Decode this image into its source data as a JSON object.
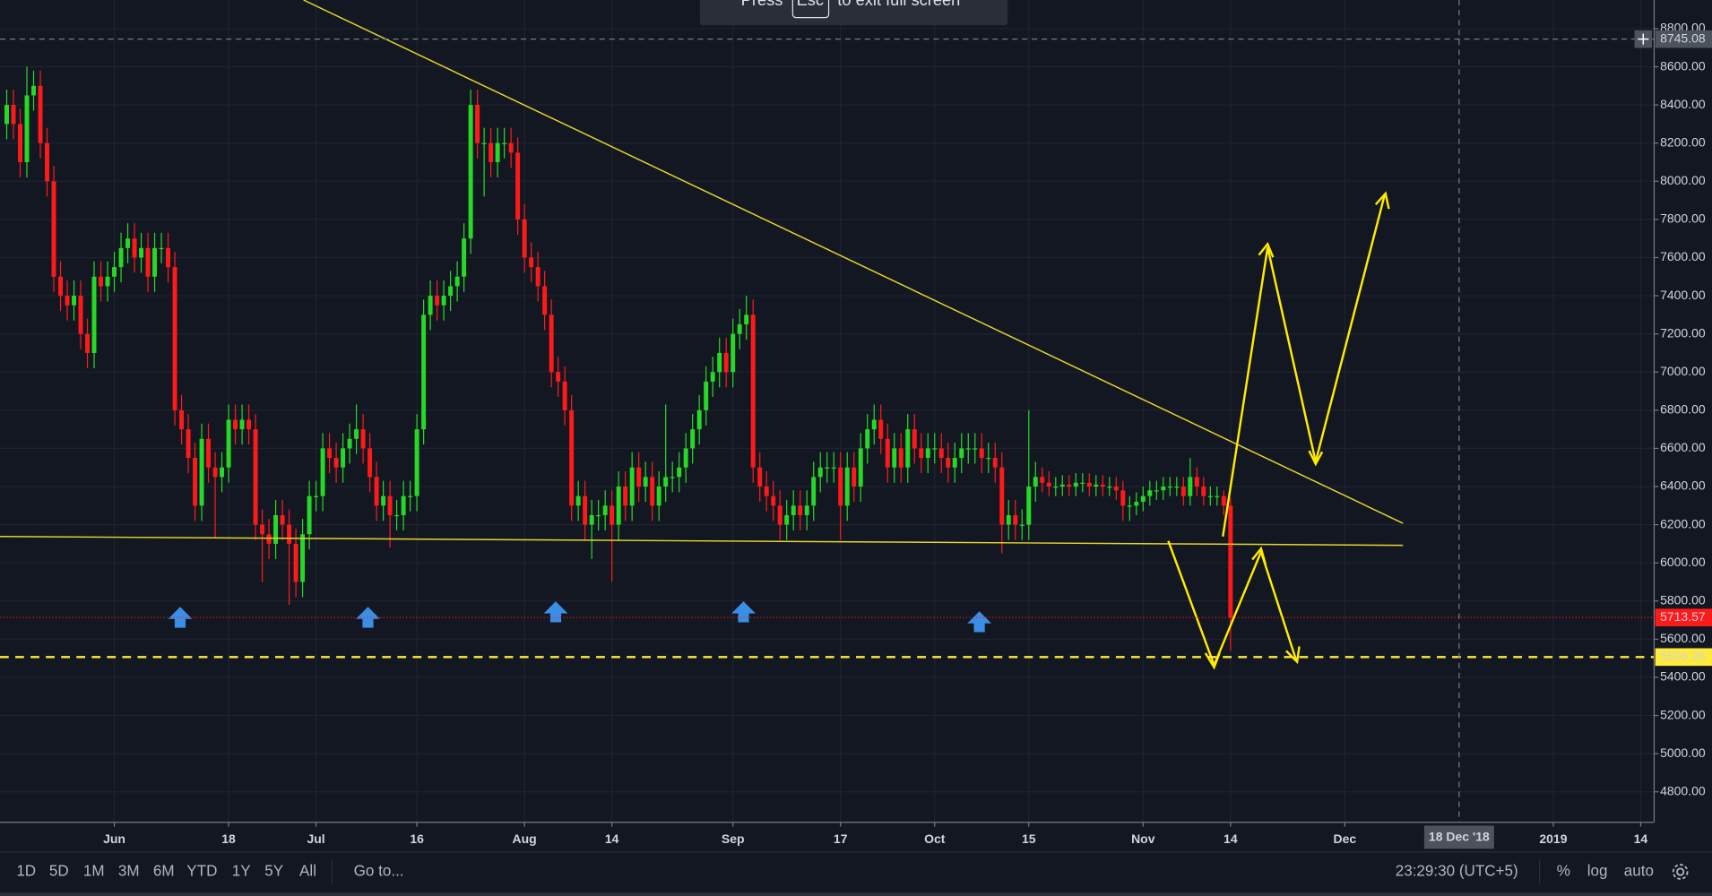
{
  "chart_data": {
    "type": "candlestick",
    "x": [
      "2018-05-16",
      "2018-05-17",
      "2018-05-18",
      "2018-05-19",
      "2018-05-20",
      "2018-05-21",
      "2018-05-22",
      "2018-05-23",
      "2018-05-24",
      "2018-05-25",
      "2018-05-26",
      "2018-05-27",
      "2018-05-28",
      "2018-05-29",
      "2018-05-30",
      "2018-05-31",
      "2018-06-01",
      "2018-06-02",
      "2018-06-03",
      "2018-06-04",
      "2018-06-05",
      "2018-06-06",
      "2018-06-07",
      "2018-06-08",
      "2018-06-09",
      "2018-06-10",
      "2018-06-11",
      "2018-06-12",
      "2018-06-13",
      "2018-06-14",
      "2018-06-15",
      "2018-06-16",
      "2018-06-17",
      "2018-06-18",
      "2018-06-19",
      "2018-06-20",
      "2018-06-21",
      "2018-06-22",
      "2018-06-23",
      "2018-06-24",
      "2018-06-25",
      "2018-06-26",
      "2018-06-27",
      "2018-06-28",
      "2018-06-29",
      "2018-06-30",
      "2018-07-01",
      "2018-07-02",
      "2018-07-03",
      "2018-07-04",
      "2018-07-05",
      "2018-07-06",
      "2018-07-07",
      "2018-07-08",
      "2018-07-09",
      "2018-07-10",
      "2018-07-11",
      "2018-07-12",
      "2018-07-13",
      "2018-07-14",
      "2018-07-15",
      "2018-07-16",
      "2018-07-17",
      "2018-07-18",
      "2018-07-19",
      "2018-07-20",
      "2018-07-21",
      "2018-07-22",
      "2018-07-23",
      "2018-07-24",
      "2018-07-25",
      "2018-07-26",
      "2018-07-27",
      "2018-07-28",
      "2018-07-29",
      "2018-07-30",
      "2018-07-31",
      "2018-08-01",
      "2018-08-02",
      "2018-08-03",
      "2018-08-04",
      "2018-08-05",
      "2018-08-06",
      "2018-08-07",
      "2018-08-08",
      "2018-08-09",
      "2018-08-10",
      "2018-08-11",
      "2018-08-12",
      "2018-08-13",
      "2018-08-14",
      "2018-08-15",
      "2018-08-16",
      "2018-08-17",
      "2018-08-18",
      "2018-08-19",
      "2018-08-20",
      "2018-08-21",
      "2018-08-22",
      "2018-08-23",
      "2018-08-24",
      "2018-08-25",
      "2018-08-26",
      "2018-08-27",
      "2018-08-28",
      "2018-08-29",
      "2018-08-30",
      "2018-08-31",
      "2018-09-01",
      "2018-09-02",
      "2018-09-03",
      "2018-09-04",
      "2018-09-05",
      "2018-09-06",
      "2018-09-07",
      "2018-09-08",
      "2018-09-09",
      "2018-09-10",
      "2018-09-11",
      "2018-09-12",
      "2018-09-13",
      "2018-09-14",
      "2018-09-15",
      "2018-09-16",
      "2018-09-17",
      "2018-09-18",
      "2018-09-19",
      "2018-09-20",
      "2018-09-21",
      "2018-09-22",
      "2018-09-23",
      "2018-09-24",
      "2018-09-25",
      "2018-09-26",
      "2018-09-27",
      "2018-09-28",
      "2018-09-29",
      "2018-09-30",
      "2018-10-01",
      "2018-10-02",
      "2018-10-03",
      "2018-10-04",
      "2018-10-05",
      "2018-10-06",
      "2018-10-07",
      "2018-10-08",
      "2018-10-09",
      "2018-10-10",
      "2018-10-11",
      "2018-10-12",
      "2018-10-13",
      "2018-10-14",
      "2018-10-15",
      "2018-10-16",
      "2018-10-17",
      "2018-10-18",
      "2018-10-19",
      "2018-10-20",
      "2018-10-21",
      "2018-10-22",
      "2018-10-23",
      "2018-10-24",
      "2018-10-25",
      "2018-10-26",
      "2018-10-27",
      "2018-10-28",
      "2018-10-29",
      "2018-10-30",
      "2018-10-31",
      "2018-11-01",
      "2018-11-02",
      "2018-11-03",
      "2018-11-04",
      "2018-11-05",
      "2018-11-06",
      "2018-11-07",
      "2018-11-08",
      "2018-11-09",
      "2018-11-10",
      "2018-11-11",
      "2018-11-12",
      "2018-11-13",
      "2018-11-14"
    ],
    "open": [
      8300,
      8400,
      8300,
      8100,
      8450,
      8500,
      8200,
      8000,
      7500,
      7400,
      7350,
      7400,
      7200,
      7100,
      7500,
      7450,
      7500,
      7550,
      7650,
      7700,
      7600,
      7650,
      7500,
      7650,
      7650,
      7550,
      6800,
      6700,
      6550,
      6300,
      6650,
      6500,
      6450,
      6500,
      6750,
      6700,
      6750,
      6700,
      6200,
      6150,
      6100,
      6250,
      6200,
      6100,
      5900,
      6150,
      6350,
      6350,
      6600,
      6550,
      6500,
      6600,
      6650,
      6700,
      6600,
      6450,
      6300,
      6350,
      6250,
      6250,
      6350,
      6350,
      6700,
      7300,
      7400,
      7350,
      7400,
      7450,
      7500,
      7700,
      8400,
      8200,
      8200,
      8100,
      8200,
      8200,
      8150,
      7800,
      7600,
      7550,
      7450,
      7300,
      7000,
      6950,
      6800,
      6300,
      6350,
      6200,
      6250,
      6250,
      6300,
      6200,
      6400,
      6300,
      6500,
      6400,
      6450,
      6300,
      6400,
      6450,
      6450,
      6500,
      6600,
      6700,
      6800,
      6950,
      7000,
      7100,
      7000,
      7200,
      7250,
      7300,
      6500,
      6400,
      6350,
      6300,
      6200,
      6250,
      6300,
      6250,
      6300,
      6450,
      6500,
      6500,
      6500,
      6300,
      6500,
      6400,
      6600,
      6700,
      6750,
      6650,
      6500,
      6600,
      6500,
      6700,
      6600,
      6550,
      6600,
      6600,
      6550,
      6500,
      6550,
      6600,
      6600,
      6600,
      6550,
      6550,
      6500,
      6200,
      6250,
      6200,
      6200,
      6400,
      6450,
      6420,
      6400,
      6400,
      6410,
      6400,
      6420,
      6420,
      6400,
      6410,
      6400,
      6400,
      6380,
      6300,
      6300,
      6320,
      6350,
      6380,
      6380,
      6400,
      6400,
      6400,
      6350,
      6450,
      6400,
      6350,
      6350,
      6350,
      6300
    ],
    "high": [
      8480,
      8480,
      8380,
      8600,
      8580,
      8580,
      8280,
      8080,
      7580,
      7480,
      7480,
      7480,
      7280,
      7580,
      7580,
      7580,
      7630,
      7730,
      7780,
      7780,
      7730,
      7730,
      7730,
      7730,
      7730,
      7630,
      6880,
      6780,
      6630,
      6730,
      6730,
      6580,
      6580,
      6830,
      6830,
      6830,
      6830,
      6780,
      6280,
      6230,
      6330,
      6330,
      6280,
      6180,
      6230,
      6430,
      6430,
      6680,
      6680,
      6630,
      6680,
      6730,
      6830,
      6780,
      6680,
      6530,
      6430,
      6430,
      6330,
      6430,
      6430,
      6780,
      7380,
      7480,
      7480,
      7480,
      7530,
      7580,
      7780,
      8480,
      8480,
      8280,
      8280,
      8280,
      8280,
      8280,
      8230,
      7880,
      7680,
      7630,
      7530,
      7380,
      7080,
      7030,
      6880,
      6430,
      6430,
      6330,
      6330,
      6380,
      6380,
      6480,
      6480,
      6580,
      6580,
      6530,
      6530,
      6480,
      6830,
      6530,
      6580,
      6680,
      6780,
      6880,
      7030,
      7080,
      7180,
      7180,
      7280,
      7330,
      7400,
      7380,
      6580,
      6480,
      6430,
      6380,
      6330,
      6380,
      6380,
      6380,
      6530,
      6580,
      6580,
      6580,
      6580,
      6580,
      6580,
      6680,
      6780,
      6830,
      6830,
      6730,
      6680,
      6680,
      6780,
      6780,
      6680,
      6680,
      6680,
      6680,
      6630,
      6630,
      6680,
      6680,
      6680,
      6680,
      6630,
      6630,
      6580,
      6330,
      6330,
      6280,
      6800,
      6530,
      6500,
      6480,
      6450,
      6460,
      6460,
      6470,
      6470,
      6470,
      6460,
      6460,
      6450,
      6450,
      6430,
      6350,
      6370,
      6400,
      6430,
      6430,
      6450,
      6450,
      6450,
      6450,
      6550,
      6500,
      6450,
      6400,
      6400,
      6380,
      6340
    ],
    "low": [
      8220,
      8220,
      8020,
      8020,
      8370,
      8120,
      7920,
      7420,
      7320,
      7270,
      7270,
      7120,
      7020,
      7020,
      7370,
      7370,
      7420,
      7470,
      7570,
      7520,
      7520,
      7420,
      7420,
      7570,
      7470,
      6720,
      6620,
      6470,
      6220,
      6220,
      6420,
      6130,
      6370,
      6420,
      6620,
      6620,
      6620,
      6120,
      5900,
      6020,
      6020,
      6120,
      5780,
      5820,
      5820,
      6070,
      6270,
      6270,
      6470,
      6420,
      6420,
      6520,
      6570,
      6520,
      6370,
      6220,
      6220,
      6080,
      6170,
      6170,
      6270,
      6270,
      6620,
      7220,
      7270,
      7270,
      7320,
      7370,
      7420,
      7620,
      8120,
      7920,
      8020,
      8020,
      8120,
      8070,
      7720,
      7520,
      7470,
      7370,
      7220,
      6920,
      6870,
      6720,
      6220,
      6220,
      6120,
      6020,
      6170,
      6170,
      5900,
      6120,
      6220,
      6220,
      6320,
      6320,
      6220,
      6220,
      6320,
      6370,
      6370,
      6420,
      6520,
      6620,
      6720,
      6870,
      6920,
      6920,
      6920,
      7120,
      7170,
      6420,
      6320,
      6270,
      6220,
      6120,
      6120,
      6170,
      6170,
      6170,
      6220,
      6370,
      6420,
      6420,
      6120,
      6220,
      6320,
      6320,
      6520,
      6620,
      6570,
      6420,
      6420,
      6420,
      6420,
      6520,
      6470,
      6470,
      6520,
      6470,
      6420,
      6420,
      6470,
      6520,
      6520,
      6470,
      6470,
      6420,
      6050,
      6120,
      6120,
      6120,
      6120,
      6320,
      6370,
      6350,
      6350,
      6350,
      6350,
      6350,
      6370,
      6350,
      6350,
      6350,
      6350,
      6330,
      6220,
      6220,
      6250,
      6270,
      6300,
      6330,
      6330,
      6350,
      6350,
      6300,
      6300,
      6350,
      6300,
      6300,
      6300,
      6250,
      5540
    ],
    "close": [
      8400,
      8300,
      8100,
      8450,
      8500,
      8200,
      8000,
      7500,
      7400,
      7350,
      7400,
      7200,
      7100,
      7500,
      7450,
      7500,
      7550,
      7650,
      7700,
      7600,
      7650,
      7500,
      7650,
      7650,
      7550,
      6800,
      6700,
      6550,
      6300,
      6650,
      6500,
      6450,
      6500,
      6750,
      6700,
      6750,
      6700,
      6200,
      6150,
      6100,
      6250,
      6200,
      6100,
      5900,
      6150,
      6350,
      6350,
      6600,
      6550,
      6500,
      6600,
      6650,
      6700,
      6600,
      6450,
      6300,
      6350,
      6250,
      6250,
      6350,
      6350,
      6700,
      7300,
      7400,
      7350,
      7400,
      7450,
      7500,
      7700,
      8400,
      8200,
      8200,
      8100,
      8200,
      8200,
      8150,
      7800,
      7600,
      7550,
      7450,
      7300,
      7000,
      6950,
      6800,
      6300,
      6350,
      6200,
      6250,
      6250,
      6300,
      6200,
      6400,
      6300,
      6500,
      6400,
      6450,
      6300,
      6400,
      6450,
      6450,
      6500,
      6600,
      6700,
      6800,
      6950,
      7000,
      7100,
      7000,
      7200,
      7250,
      7300,
      6500,
      6400,
      6350,
      6300,
      6200,
      6250,
      6300,
      6250,
      6300,
      6450,
      6500,
      6500,
      6500,
      6300,
      6500,
      6400,
      6600,
      6700,
      6750,
      6650,
      6500,
      6600,
      6500,
      6700,
      6600,
      6550,
      6600,
      6600,
      6550,
      6500,
      6550,
      6600,
      6600,
      6600,
      6550,
      6550,
      6500,
      6200,
      6250,
      6200,
      6200,
      6400,
      6450,
      6420,
      6400,
      6400,
      6410,
      6400,
      6420,
      6420,
      6400,
      6410,
      6400,
      6400,
      6380,
      6300,
      6300,
      6320,
      6350,
      6380,
      6380,
      6400,
      6400,
      6400,
      6350,
      6450,
      6400,
      6350,
      6350,
      6350,
      6300,
      5713.57
    ],
    "up_color": "#26d926",
    "down_color": "#ff1a1a",
    "xlim": [
      "2018-05-15",
      "2019-01-16"
    ],
    "xticks": [
      {
        "value": "2018-06-01",
        "label": "Jun"
      },
      {
        "value": "2018-06-18",
        "label": "18"
      },
      {
        "value": "2018-07-01",
        "label": "Jul"
      },
      {
        "value": "2018-07-16",
        "label": "16"
      },
      {
        "value": "2018-08-01",
        "label": "Aug"
      },
      {
        "value": "2018-08-14",
        "label": "14"
      },
      {
        "value": "2018-09-01",
        "label": "Sep"
      },
      {
        "value": "2018-09-17",
        "label": "17"
      },
      {
        "value": "2018-10-01",
        "label": "Oct"
      },
      {
        "value": "2018-10-15",
        "label": "15"
      },
      {
        "value": "2018-11-01",
        "label": "Nov"
      },
      {
        "value": "2018-11-14",
        "label": "14"
      },
      {
        "value": "2018-12-01",
        "label": "Dec"
      },
      {
        "value": "2019-01-01",
        "label": "2019"
      },
      {
        "value": "2019-01-14",
        "label": "14"
      }
    ],
    "ylim": [
      4640,
      8950
    ],
    "yticks": [
      {
        "value": 4800,
        "label": "4800.00"
      },
      {
        "value": 5000,
        "label": "5000.00"
      },
      {
        "value": 5200,
        "label": "5200.00"
      },
      {
        "value": 5400,
        "label": "5400.00"
      },
      {
        "value": 5600,
        "label": "5600.00"
      },
      {
        "value": 5800,
        "label": "5800.00"
      },
      {
        "value": 6000,
        "label": "6000.00"
      },
      {
        "value": 6200,
        "label": "6200.00"
      },
      {
        "value": 6400,
        "label": "6400.00"
      },
      {
        "value": 6600,
        "label": "6600.00"
      },
      {
        "value": 6800,
        "label": "6800.00"
      },
      {
        "value": 7000,
        "label": "7000.00"
      },
      {
        "value": 7200,
        "label": "7200.00"
      },
      {
        "value": 7400,
        "label": "7400.00"
      },
      {
        "value": 7600,
        "label": "7600.00"
      },
      {
        "value": 7800,
        "label": "7800.00"
      },
      {
        "value": 8000,
        "label": "8000.00"
      },
      {
        "value": 8200,
        "label": "8200.00"
      },
      {
        "value": 8400,
        "label": "8400.00"
      },
      {
        "value": 8600,
        "label": "8600.00"
      },
      {
        "value": 8800,
        "label": "8800.00"
      }
    ],
    "grid": true,
    "last_price": {
      "value": 5713.57,
      "color": "#ff1a1a"
    },
    "level": {
      "value": 5506.26,
      "color": "#ffeb3b"
    },
    "crosshair": {
      "price": 8745.08,
      "date": {
        "value": "2018-12-18",
        "label": "18 Dec '18"
      }
    }
  },
  "toolbar": {
    "ranges": [
      "1D",
      "5D",
      "1M",
      "3M",
      "6M",
      "YTD",
      "1Y",
      "5Y",
      "All"
    ],
    "goto": "Go to...",
    "clock": "23:29:30 (UTC+5)",
    "options": [
      "%",
      "log",
      "auto"
    ]
  },
  "fullscreen_notice": {
    "before": "Press",
    "key": "Esc",
    "after": "to exit full screen"
  }
}
